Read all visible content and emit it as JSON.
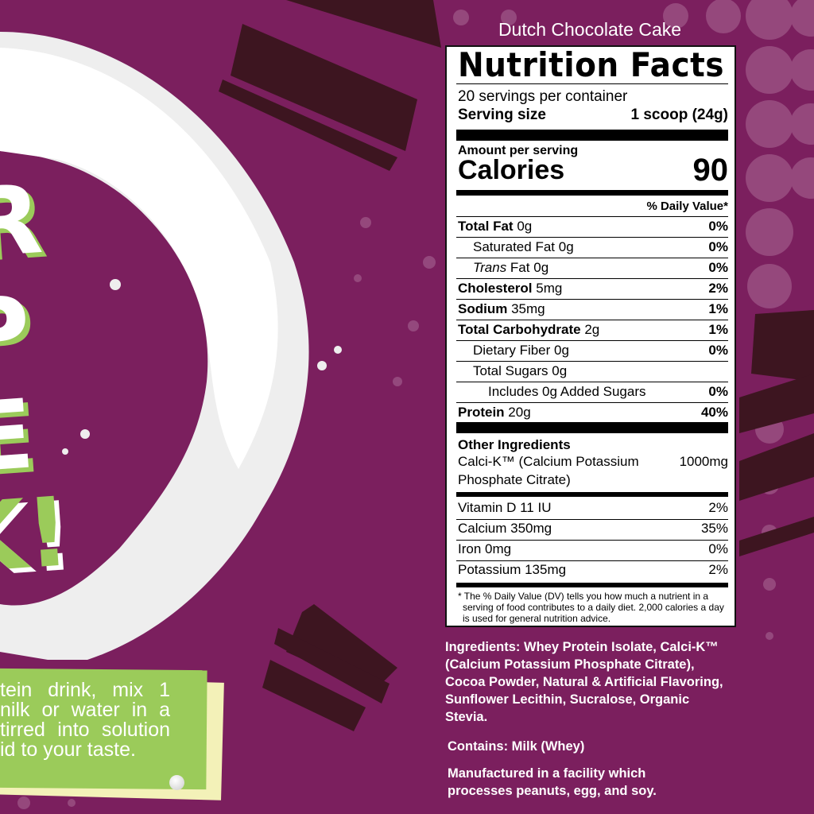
{
  "colors": {
    "background": "#7b1f5e",
    "accent_green": "#9bcb5a",
    "cake_dark": "#3d1520",
    "label_bg": "#ffffff"
  },
  "decor": {
    "big_letters": [
      "R",
      "P",
      "E",
      "K!"
    ],
    "icons": [
      "milk-splash",
      "cake-slice",
      "dot-pattern"
    ]
  },
  "instructions": {
    "lines": [
      "tein drink, mix 1",
      "nilk or water in a",
      "tirred into solution",
      "id to your taste."
    ]
  },
  "product_name": "Dutch Chocolate Cake",
  "label": {
    "title": "Nutrition Facts",
    "servings": "20 servings per container",
    "serving_size_label": "Serving size",
    "serving_size_value": "1 scoop (24g)",
    "amount_per_serving": "Amount per serving",
    "calories_label": "Calories",
    "calories_value": "90",
    "dv_header": "% Daily Value*",
    "nutrients": [
      {
        "name": "Total Fat",
        "amount": "0g",
        "dv": "0%",
        "bold": true,
        "indent": 0
      },
      {
        "name": "Saturated Fat",
        "amount": "0g",
        "dv": "0%",
        "bold": false,
        "indent": 1
      },
      {
        "name": "Trans",
        "name_rest": " Fat",
        "amount": "0g",
        "dv": "0%",
        "bold": false,
        "indent": 1,
        "italic": true
      },
      {
        "name": "Cholesterol",
        "amount": "5mg",
        "dv": "2%",
        "bold": true,
        "indent": 0
      },
      {
        "name": "Sodium",
        "amount": "35mg",
        "dv": "1%",
        "bold": true,
        "indent": 0
      },
      {
        "name": "Total Carbohydrate",
        "amount": "2g",
        "dv": "1%",
        "bold": true,
        "indent": 0
      },
      {
        "name": "Dietary Fiber",
        "amount": "0g",
        "dv": "0%",
        "bold": false,
        "indent": 1
      },
      {
        "name": "Total Sugars",
        "amount": "0g",
        "dv": "",
        "bold": false,
        "indent": 1
      },
      {
        "name": "Includes 0g Added Sugars",
        "amount": "",
        "dv": "0%",
        "bold": false,
        "indent": 2
      },
      {
        "name": "Protein",
        "amount": "20g",
        "dv": "40%",
        "bold": true,
        "indent": 0
      }
    ],
    "other_ingredients_title": "Other Ingredients",
    "other_line1": "Calci-K™ (Calcium Potassium",
    "other_line2": "Phosphate Citrate)",
    "other_amount": "1000mg",
    "vitamins": [
      {
        "name": "Vitamin D 11 IU",
        "dv": "2%"
      },
      {
        "name": "Calcium 350mg",
        "dv": "35%"
      },
      {
        "name": "Iron 0mg",
        "dv": "0%"
      },
      {
        "name": "Potassium 135mg",
        "dv": "2%"
      }
    ],
    "footnote_lines": [
      "* The % Daily Value (DV) tells you how much a nutrient in a",
      "serving of food contributes to a daily diet. 2,000 calories a day",
      "is used for general nutrition advice."
    ]
  },
  "ingredients": [
    "Ingredients: Whey Protein Isolate, Calci-K™",
    "(Calcium Potassium Phosphate Citrate),",
    "Cocoa Powder, Natural & Artificial Flavoring,",
    "Sunflower Lecithin, Sucralose, Organic",
    "Stevia."
  ],
  "contains": "Contains: Milk (Whey)",
  "facility": [
    "Manufactured in a facility which",
    "processes peanuts, egg, and soy."
  ]
}
